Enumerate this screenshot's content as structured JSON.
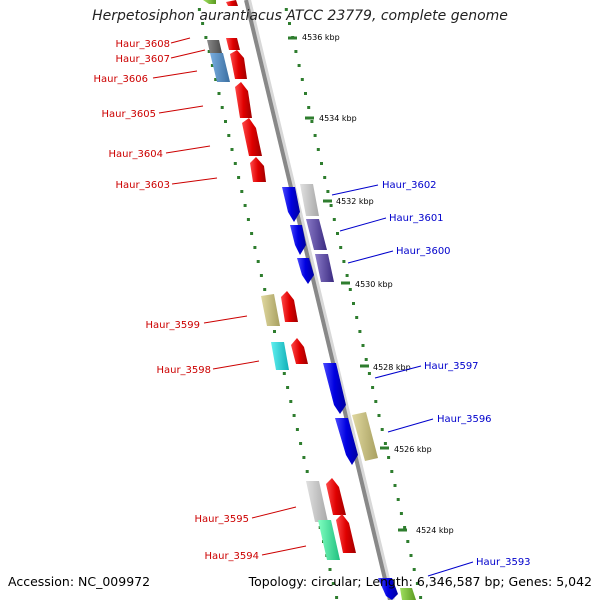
{
  "title": "Herpetosiphon aurantiacus ATCC 23779, complete genome",
  "footer": {
    "accession": "Accession: NC_009972",
    "summary": "Topology: circular; Length: 6,346,587 bp; Genes: 5,042"
  },
  "colors": {
    "backbone": "#8a8a8a",
    "tick": "#2e7d2e",
    "reverse_label": "#cc0000",
    "forward_label": "#0000cc"
  },
  "ticks": [
    {
      "label": "4536 kbp"
    },
    {
      "label": "4534 kbp"
    },
    {
      "label": "4532 kbp"
    },
    {
      "label": "4530 kbp"
    },
    {
      "label": "4528 kbp"
    },
    {
      "label": "4526 kbp"
    },
    {
      "label": "4524 kbp"
    }
  ],
  "genes_reverse": [
    {
      "label": "Haur_3608"
    },
    {
      "label": "Haur_3607"
    },
    {
      "label": "Haur_3606"
    },
    {
      "label": "Haur_3605"
    },
    {
      "label": "Haur_3604"
    },
    {
      "label": "Haur_3603"
    },
    {
      "label": "Haur_3599"
    },
    {
      "label": "Haur_3598"
    },
    {
      "label": "Haur_3595"
    },
    {
      "label": "Haur_3594"
    }
  ],
  "genes_forward": [
    {
      "label": "Haur_3602"
    },
    {
      "label": "Haur_3601"
    },
    {
      "label": "Haur_3600"
    },
    {
      "label": "Haur_3597"
    },
    {
      "label": "Haur_3596"
    },
    {
      "label": "Haur_3593"
    }
  ]
}
